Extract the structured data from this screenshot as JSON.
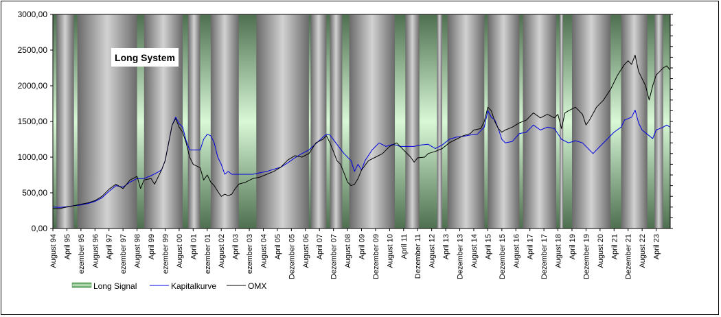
{
  "chart_data": {
    "type": "line",
    "title": "Long System",
    "xlabel": "",
    "ylabel": "",
    "ylim": [
      0,
      3000
    ],
    "grid": false,
    "legend_position": "bottom-left",
    "y_ticks": [
      "0,00",
      "500,00",
      "1000,00",
      "1500,00",
      "2000,00",
      "2500,00",
      "3000,00"
    ],
    "x_range": [
      "1994-08",
      "2023-08"
    ],
    "x_ticks": [
      {
        "label": "August 94",
        "t": 0
      },
      {
        "label": "April 95",
        "t": 8
      },
      {
        "label": "ezember 95",
        "t": 16
      },
      {
        "label": "August 96",
        "t": 24
      },
      {
        "label": "April 97",
        "t": 32
      },
      {
        "label": "ezember 97",
        "t": 40
      },
      {
        "label": "August 98",
        "t": 48
      },
      {
        "label": "April 99",
        "t": 56
      },
      {
        "label": "ezember 99",
        "t": 64
      },
      {
        "label": "August 00",
        "t": 72
      },
      {
        "label": "April 01",
        "t": 80
      },
      {
        "label": "ezember 01",
        "t": 88
      },
      {
        "label": "August 02",
        "t": 96
      },
      {
        "label": "April 03",
        "t": 104
      },
      {
        "label": "ezember 03",
        "t": 112
      },
      {
        "label": "August 04",
        "t": 120
      },
      {
        "label": "April 05",
        "t": 128
      },
      {
        "label": "Dezember 05",
        "t": 136
      },
      {
        "label": "August 06",
        "t": 144
      },
      {
        "label": "April 07",
        "t": 152
      },
      {
        "label": "Dezember 07",
        "t": 160
      },
      {
        "label": "August 08",
        "t": 168
      },
      {
        "label": "April 09",
        "t": 176
      },
      {
        "label": "Dezember 09",
        "t": 184
      },
      {
        "label": "August 10",
        "t": 192
      },
      {
        "label": "April 11",
        "t": 200
      },
      {
        "label": "Dezember 11",
        "t": 208
      },
      {
        "label": "August 12",
        "t": 216
      },
      {
        "label": "April 13",
        "t": 224
      },
      {
        "label": "Dezember 13",
        "t": 232
      },
      {
        "label": "August 14",
        "t": 240
      },
      {
        "label": "April 15",
        "t": 248
      },
      {
        "label": "Dezember 15",
        "t": 256
      },
      {
        "label": "August 16",
        "t": 264
      },
      {
        "label": "April 17",
        "t": 272
      },
      {
        "label": "Dezember 17",
        "t": 280
      },
      {
        "label": "August 18",
        "t": 288
      },
      {
        "label": "April 19",
        "t": 296
      },
      {
        "label": "Dezember 19",
        "t": 304
      },
      {
        "label": "August 20",
        "t": 312
      },
      {
        "label": "April 21",
        "t": 320
      },
      {
        "label": "Dezember 21",
        "t": 328
      },
      {
        "label": "August 22",
        "t": 336
      },
      {
        "label": "April 23",
        "t": 344
      }
    ],
    "long_signal_periods": [
      [
        2,
        12
      ],
      [
        14,
        48
      ],
      [
        52,
        74
      ],
      [
        77,
        84
      ],
      [
        90,
        106
      ],
      [
        116,
        146
      ],
      [
        147,
        156
      ],
      [
        158,
        165
      ],
      [
        169,
        195
      ],
      [
        201,
        209
      ],
      [
        219,
        222
      ],
      [
        225,
        246
      ],
      [
        248,
        266
      ],
      [
        268,
        287
      ],
      [
        289,
        291
      ],
      [
        296,
        318
      ],
      [
        324,
        339
      ],
      [
        343,
        348
      ]
    ],
    "series": [
      {
        "name": "Long Signal",
        "color": "#4a9a4a",
        "kind": "shaded-periods"
      },
      {
        "name": "Kapitalkurve",
        "color": "#0000e0",
        "points": [
          [
            0,
            300
          ],
          [
            4,
            295
          ],
          [
            8,
            305
          ],
          [
            12,
            320
          ],
          [
            16,
            330
          ],
          [
            20,
            350
          ],
          [
            24,
            380
          ],
          [
            28,
            430
          ],
          [
            32,
            520
          ],
          [
            36,
            600
          ],
          [
            40,
            580
          ],
          [
            44,
            650
          ],
          [
            48,
            700
          ],
          [
            52,
            700
          ],
          [
            56,
            740
          ],
          [
            60,
            790
          ],
          [
            62,
            820
          ],
          [
            64,
            950
          ],
          [
            66,
            1200
          ],
          [
            68,
            1450
          ],
          [
            70,
            1560
          ],
          [
            72,
            1470
          ],
          [
            74,
            1420
          ],
          [
            76,
            1230
          ],
          [
            78,
            1100
          ],
          [
            80,
            1100
          ],
          [
            84,
            1100
          ],
          [
            86,
            1250
          ],
          [
            88,
            1320
          ],
          [
            90,
            1300
          ],
          [
            92,
            1200
          ],
          [
            94,
            1000
          ],
          [
            96,
            900
          ],
          [
            98,
            760
          ],
          [
            100,
            800
          ],
          [
            102,
            760
          ],
          [
            106,
            760
          ],
          [
            110,
            760
          ],
          [
            114,
            760
          ],
          [
            118,
            780
          ],
          [
            122,
            800
          ],
          [
            126,
            830
          ],
          [
            130,
            860
          ],
          [
            134,
            920
          ],
          [
            138,
            990
          ],
          [
            142,
            1050
          ],
          [
            146,
            1100
          ],
          [
            150,
            1190
          ],
          [
            154,
            1280
          ],
          [
            156,
            1320
          ],
          [
            158,
            1310
          ],
          [
            162,
            1180
          ],
          [
            166,
            1050
          ],
          [
            170,
            950
          ],
          [
            172,
            800
          ],
          [
            174,
            900
          ],
          [
            176,
            820
          ],
          [
            178,
            950
          ],
          [
            182,
            1100
          ],
          [
            186,
            1200
          ],
          [
            190,
            1150
          ],
          [
            194,
            1180
          ],
          [
            198,
            1150
          ],
          [
            202,
            1150
          ],
          [
            206,
            1150
          ],
          [
            210,
            1170
          ],
          [
            214,
            1180
          ],
          [
            218,
            1120
          ],
          [
            222,
            1170
          ],
          [
            226,
            1250
          ],
          [
            230,
            1280
          ],
          [
            234,
            1290
          ],
          [
            238,
            1310
          ],
          [
            242,
            1320
          ],
          [
            246,
            1420
          ],
          [
            248,
            1650
          ],
          [
            250,
            1560
          ],
          [
            252,
            1520
          ],
          [
            254,
            1400
          ],
          [
            256,
            1250
          ],
          [
            258,
            1200
          ],
          [
            262,
            1220
          ],
          [
            266,
            1330
          ],
          [
            270,
            1350
          ],
          [
            274,
            1450
          ],
          [
            278,
            1380
          ],
          [
            282,
            1420
          ],
          [
            286,
            1400
          ],
          [
            290,
            1250
          ],
          [
            294,
            1200
          ],
          [
            298,
            1230
          ],
          [
            302,
            1200
          ],
          [
            306,
            1100
          ],
          [
            308,
            1050
          ],
          [
            312,
            1150
          ],
          [
            316,
            1250
          ],
          [
            320,
            1350
          ],
          [
            324,
            1420
          ],
          [
            326,
            1520
          ],
          [
            330,
            1560
          ],
          [
            332,
            1660
          ],
          [
            334,
            1480
          ],
          [
            336,
            1380
          ],
          [
            340,
            1300
          ],
          [
            342,
            1260
          ],
          [
            344,
            1380
          ],
          [
            346,
            1400
          ],
          [
            348,
            1420
          ],
          [
            350,
            1450
          ],
          [
            352,
            1420
          ]
        ]
      },
      {
        "name": "OMX",
        "color": "#000000",
        "points": [
          [
            0,
            280
          ],
          [
            4,
            280
          ],
          [
            8,
            300
          ],
          [
            12,
            320
          ],
          [
            16,
            340
          ],
          [
            20,
            360
          ],
          [
            24,
            390
          ],
          [
            28,
            450
          ],
          [
            32,
            550
          ],
          [
            36,
            620
          ],
          [
            40,
            560
          ],
          [
            44,
            680
          ],
          [
            48,
            730
          ],
          [
            50,
            560
          ],
          [
            52,
            680
          ],
          [
            56,
            700
          ],
          [
            58,
            620
          ],
          [
            60,
            720
          ],
          [
            62,
            820
          ],
          [
            64,
            950
          ],
          [
            66,
            1200
          ],
          [
            68,
            1450
          ],
          [
            70,
            1540
          ],
          [
            72,
            1420
          ],
          [
            74,
            1350
          ],
          [
            76,
            1200
          ],
          [
            78,
            1000
          ],
          [
            80,
            900
          ],
          [
            84,
            850
          ],
          [
            86,
            680
          ],
          [
            88,
            750
          ],
          [
            90,
            650
          ],
          [
            92,
            600
          ],
          [
            94,
            520
          ],
          [
            96,
            450
          ],
          [
            98,
            480
          ],
          [
            100,
            460
          ],
          [
            102,
            480
          ],
          [
            104,
            560
          ],
          [
            106,
            620
          ],
          [
            110,
            650
          ],
          [
            114,
            700
          ],
          [
            118,
            720
          ],
          [
            122,
            760
          ],
          [
            126,
            800
          ],
          [
            130,
            860
          ],
          [
            134,
            960
          ],
          [
            138,
            1020
          ],
          [
            142,
            1000
          ],
          [
            146,
            1050
          ],
          [
            150,
            1200
          ],
          [
            154,
            1250
          ],
          [
            156,
            1300
          ],
          [
            158,
            1200
          ],
          [
            160,
            1080
          ],
          [
            162,
            950
          ],
          [
            164,
            900
          ],
          [
            166,
            780
          ],
          [
            168,
            650
          ],
          [
            170,
            600
          ],
          [
            172,
            620
          ],
          [
            174,
            700
          ],
          [
            176,
            820
          ],
          [
            180,
            950
          ],
          [
            184,
            1000
          ],
          [
            188,
            1050
          ],
          [
            192,
            1150
          ],
          [
            196,
            1200
          ],
          [
            200,
            1100
          ],
          [
            204,
            1000
          ],
          [
            206,
            930
          ],
          [
            208,
            990
          ],
          [
            212,
            1000
          ],
          [
            214,
            1050
          ],
          [
            218,
            1080
          ],
          [
            222,
            1120
          ],
          [
            226,
            1200
          ],
          [
            230,
            1250
          ],
          [
            234,
            1300
          ],
          [
            238,
            1330
          ],
          [
            240,
            1380
          ],
          [
            244,
            1400
          ],
          [
            246,
            1500
          ],
          [
            248,
            1700
          ],
          [
            250,
            1650
          ],
          [
            252,
            1500
          ],
          [
            254,
            1400
          ],
          [
            256,
            1350
          ],
          [
            258,
            1380
          ],
          [
            262,
            1420
          ],
          [
            266,
            1480
          ],
          [
            270,
            1520
          ],
          [
            274,
            1620
          ],
          [
            278,
            1550
          ],
          [
            282,
            1600
          ],
          [
            286,
            1550
          ],
          [
            288,
            1600
          ],
          [
            290,
            1400
          ],
          [
            292,
            1620
          ],
          [
            294,
            1650
          ],
          [
            298,
            1700
          ],
          [
            302,
            1600
          ],
          [
            304,
            1450
          ],
          [
            306,
            1520
          ],
          [
            310,
            1700
          ],
          [
            314,
            1800
          ],
          [
            318,
            1950
          ],
          [
            322,
            2150
          ],
          [
            326,
            2300
          ],
          [
            328,
            2350
          ],
          [
            330,
            2300
          ],
          [
            332,
            2430
          ],
          [
            334,
            2200
          ],
          [
            336,
            2100
          ],
          [
            338,
            2000
          ],
          [
            340,
            1800
          ],
          [
            342,
            2000
          ],
          [
            344,
            2150
          ],
          [
            346,
            2200
          ],
          [
            348,
            2250
          ],
          [
            350,
            2280
          ],
          [
            352,
            2220
          ]
        ]
      }
    ]
  }
}
